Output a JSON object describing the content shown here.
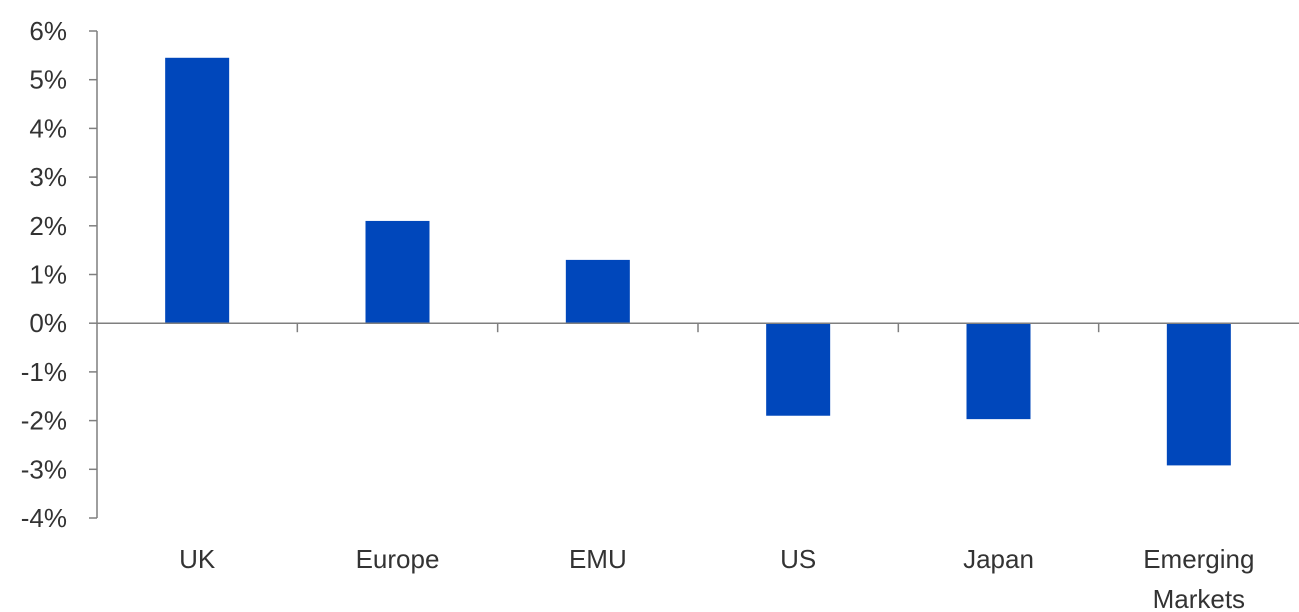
{
  "chart_data": {
    "type": "bar",
    "categories": [
      [
        "UK"
      ],
      [
        "Europe"
      ],
      [
        "EMU"
      ],
      [
        "US"
      ],
      [
        "Japan"
      ],
      [
        "Emerging",
        "Markets"
      ]
    ],
    "values": [
      5.45,
      2.1,
      1.3,
      -1.9,
      -1.97,
      -2.92
    ],
    "ylim": [
      -4,
      6
    ],
    "yticks": [
      6,
      5,
      4,
      3,
      2,
      1,
      0,
      -1,
      -2,
      -3,
      -4
    ],
    "ytick_labels": [
      "6%",
      "5%",
      "4%",
      "3%",
      "2%",
      "1%",
      "0%",
      "-1%",
      "-2%",
      "-3%",
      "-4%"
    ],
    "bar_color": "#0047BB",
    "axis_color": "#7f7f7f",
    "grid": false
  }
}
